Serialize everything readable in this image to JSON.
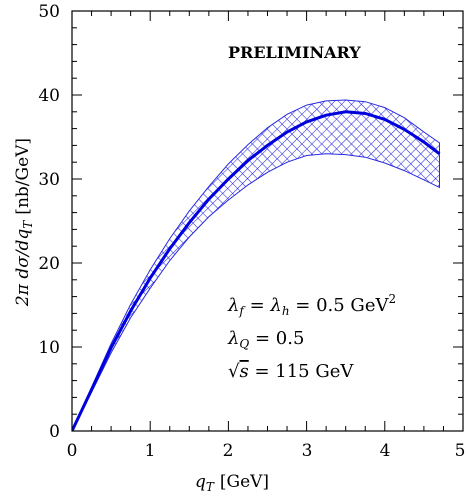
{
  "chart_data": {
    "type": "line",
    "xlabel_main": "q",
    "xlabel_sub": "T",
    "xlabel_unit": "[GeV]",
    "ylabel": "2π dσ/dq",
    "ylabel_sub": "T",
    "ylabel_unit": "[nb/GeV]",
    "xlim": [
      0,
      5
    ],
    "ylim": [
      0,
      50
    ],
    "x_ticks": [
      "0",
      "1",
      "2",
      "3",
      "4",
      "5"
    ],
    "y_ticks": [
      "0",
      "10",
      "20",
      "30",
      "40",
      "50"
    ],
    "grid": false,
    "colors": {
      "line": "#0000dd",
      "band": "#2a2ae0"
    },
    "series": [
      {
        "x": [
          0,
          0.25,
          0.5,
          0.75,
          1.0,
          1.25,
          1.5,
          1.75,
          2.0,
          2.25,
          2.5,
          2.75,
          3.0,
          3.25,
          3.5,
          3.75,
          4.0,
          4.25,
          4.5,
          4.7
        ],
        "y": [
          0,
          4.9,
          9.9,
          14.3,
          18.2,
          21.7,
          24.8,
          27.6,
          30.0,
          32.2,
          34.0,
          35.6,
          36.8,
          37.6,
          38.0,
          37.8,
          37.1,
          35.9,
          34.4,
          33.0
        ],
        "band_upper": [
          0,
          5.2,
          10.4,
          15.1,
          19.2,
          22.9,
          26.2,
          29.1,
          31.8,
          34.1,
          36.1,
          37.7,
          38.8,
          39.3,
          39.4,
          39.2,
          38.5,
          37.3,
          35.6,
          34.3
        ],
        "band_lower": [
          0,
          4.6,
          9.3,
          13.5,
          17.0,
          20.3,
          23.1,
          25.5,
          27.5,
          29.3,
          30.8,
          32.0,
          32.8,
          33.0,
          32.9,
          32.6,
          31.9,
          31.0,
          29.9,
          29.0
        ]
      }
    ],
    "annotations": {
      "preliminary": "PRELIMINARY",
      "line1_sym1": "λ",
      "line1_sub1": "f",
      "line1_eq1": " = ",
      "line1_sym2": "λ",
      "line1_sub2": "h",
      "line1_rest": " = 0.5 GeV",
      "line1_sup": "2",
      "line2_sym": "λ",
      "line2_sub": "Q",
      "line2_rest": " = 0.5",
      "line3_root": "√",
      "line3_s": "s",
      "line3_rest": " = 115 GeV"
    }
  }
}
